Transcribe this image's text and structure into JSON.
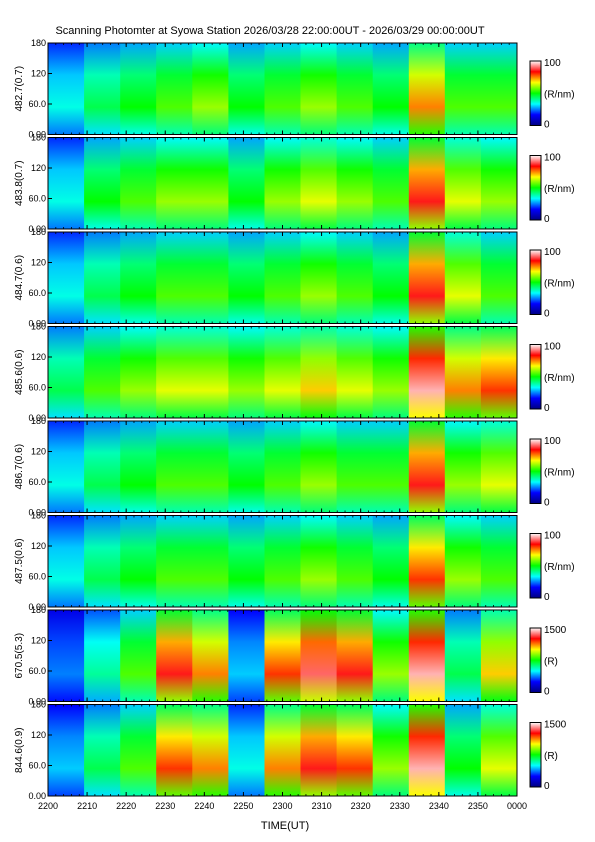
{
  "chart_data": {
    "type": "heatmap",
    "title": "Scanning Photomter at Syowa Station  2026/03/28 22:00:00UT - 2026/03/29 00:00:00UT",
    "xlabel": "TIME(UT)",
    "x_ticks": [
      "2200",
      "2210",
      "2220",
      "2230",
      "2240",
      "2250",
      "2300",
      "2310",
      "2320",
      "2330",
      "2340",
      "2350",
      "0000"
    ],
    "y_ticks": [
      "0.00",
      "60.0",
      "120",
      "180"
    ],
    "ylim": [
      0,
      180
    ],
    "colorbar_colors": [
      "#000080",
      "#0000ff",
      "#00ffff",
      "#00ff00",
      "#ffff00",
      "#ff0000",
      "#ffffff"
    ],
    "panels": [
      {
        "ylabel": "482.7(0.7)",
        "colorbar_max": "100",
        "colorbar_min": "0",
        "colorbar_unit": "(R/nm)",
        "intensity": [
          0.35,
          0.45,
          0.5,
          0.55,
          0.6,
          0.5,
          0.55,
          0.6,
          0.55,
          0.5,
          0.75,
          0.55,
          0.55
        ]
      },
      {
        "ylabel": "483.8(0.7)",
        "colorbar_max": "100",
        "colorbar_min": "0",
        "colorbar_unit": "(R/nm)",
        "intensity": [
          0.35,
          0.5,
          0.55,
          0.6,
          0.6,
          0.5,
          0.6,
          0.65,
          0.6,
          0.55,
          0.85,
          0.65,
          0.6
        ]
      },
      {
        "ylabel": "484.7(0.6)",
        "colorbar_max": "100",
        "colorbar_min": "0",
        "colorbar_unit": "(R/nm)",
        "intensity": [
          0.35,
          0.45,
          0.5,
          0.55,
          0.55,
          0.5,
          0.55,
          0.6,
          0.55,
          0.5,
          0.85,
          0.65,
          0.55
        ]
      },
      {
        "ylabel": "485.6(0.6)",
        "colorbar_max": "100",
        "colorbar_min": "0",
        "colorbar_unit": "(R/nm)",
        "intensity": [
          0.45,
          0.55,
          0.6,
          0.65,
          0.65,
          0.6,
          0.65,
          0.7,
          0.65,
          0.6,
          0.95,
          0.75,
          0.8
        ]
      },
      {
        "ylabel": "486.7(0.6)",
        "colorbar_max": "100",
        "colorbar_min": "0",
        "colorbar_unit": "(R/nm)",
        "intensity": [
          0.35,
          0.45,
          0.5,
          0.55,
          0.55,
          0.5,
          0.55,
          0.6,
          0.55,
          0.55,
          0.85,
          0.6,
          0.65
        ]
      },
      {
        "ylabel": "487.5(0.6)",
        "colorbar_max": "100",
        "colorbar_min": "0",
        "colorbar_unit": "(R/nm)",
        "intensity": [
          0.35,
          0.45,
          0.5,
          0.55,
          0.55,
          0.5,
          0.55,
          0.6,
          0.55,
          0.5,
          0.8,
          0.6,
          0.55
        ]
      },
      {
        "ylabel": "670.5(5.3)",
        "colorbar_max": "1500",
        "colorbar_min": "0",
        "colorbar_unit": "(R)",
        "intensity": [
          0.25,
          0.4,
          0.55,
          0.85,
          0.75,
          0.3,
          0.8,
          0.9,
          0.85,
          0.6,
          0.95,
          0.45,
          0.7
        ]
      },
      {
        "ylabel": "844.6(0.9)",
        "colorbar_max": "1500",
        "colorbar_min": "0",
        "colorbar_unit": "(R)",
        "intensity": [
          0.3,
          0.45,
          0.55,
          0.8,
          0.75,
          0.35,
          0.75,
          0.85,
          0.8,
          0.6,
          0.95,
          0.5,
          0.65
        ]
      }
    ]
  }
}
